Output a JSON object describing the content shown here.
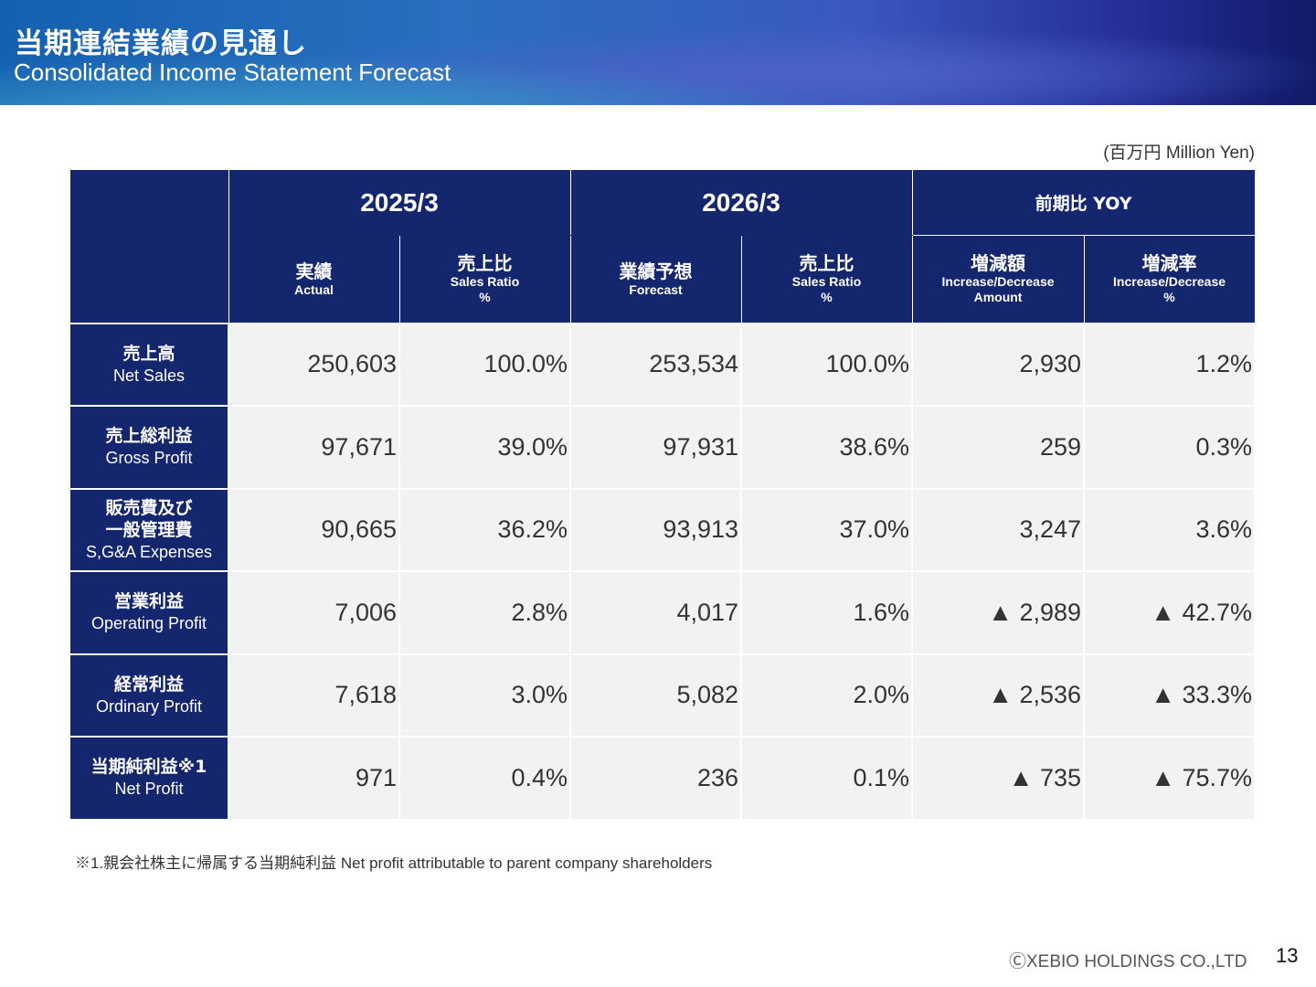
{
  "header": {
    "title_jp": "当期連結業績の見通し",
    "title_en": "Consolidated Income Statement Forecast"
  },
  "unit_label": "(百万円 Million Yen)",
  "table": {
    "groups": [
      "2025/3",
      "2026/3",
      "前期比 YOY"
    ],
    "columns": [
      {
        "jp": "実績",
        "en": "Actual",
        "en2": ""
      },
      {
        "jp": "売上比",
        "en": "Sales Ratio",
        "en2": "%"
      },
      {
        "jp": "業績予想",
        "en": "Forecast",
        "en2": ""
      },
      {
        "jp": "売上比",
        "en": "Sales Ratio",
        "en2": "%"
      },
      {
        "jp": "増減額",
        "en": "Increase/Decrease",
        "en2": "Amount"
      },
      {
        "jp": "増減率",
        "en": "Increase/Decrease",
        "en2": "%"
      }
    ],
    "rows": [
      {
        "jp": "売上高",
        "jp2": "",
        "en": "Net Sales",
        "values": [
          "250,603",
          "100.0%",
          "253,534",
          "100.0%",
          "2,930",
          "1.2%"
        ]
      },
      {
        "jp": "売上総利益",
        "jp2": "",
        "en": "Gross Profit",
        "values": [
          "97,671",
          "39.0%",
          "97,931",
          "38.6%",
          "259",
          "0.3%"
        ]
      },
      {
        "jp": "販売費及び",
        "jp2": "一般管理費",
        "en": "S,G&A Expenses",
        "values": [
          "90,665",
          "36.2%",
          "93,913",
          "37.0%",
          "3,247",
          "3.6%"
        ]
      },
      {
        "jp": "営業利益",
        "jp2": "",
        "en": "Operating Profit",
        "values": [
          "7,006",
          "2.8%",
          "4,017",
          "1.6%",
          "▲ 2,989",
          "▲ 42.7%"
        ]
      },
      {
        "jp": "経常利益",
        "jp2": "",
        "en": "Ordinary Profit",
        "values": [
          "7,618",
          "3.0%",
          "5,082",
          "2.0%",
          "▲ 2,536",
          "▲ 33.3%"
        ]
      },
      {
        "jp": "当期純利益※1",
        "jp2": "",
        "en": "Net Profit",
        "values": [
          "971",
          "0.4%",
          "236",
          "0.1%",
          "▲ 735",
          "▲ 75.7%"
        ]
      }
    ]
  },
  "footnote": "※1.親会社株主に帰属する当期純利益  Net profit attributable to parent company shareholders",
  "copyright": "ⒸXEBIO HOLDINGS CO.,LTD",
  "page_number": "13",
  "colors": {
    "header_navy": "#14266e",
    "cell_gray": "#f2f2f2"
  }
}
